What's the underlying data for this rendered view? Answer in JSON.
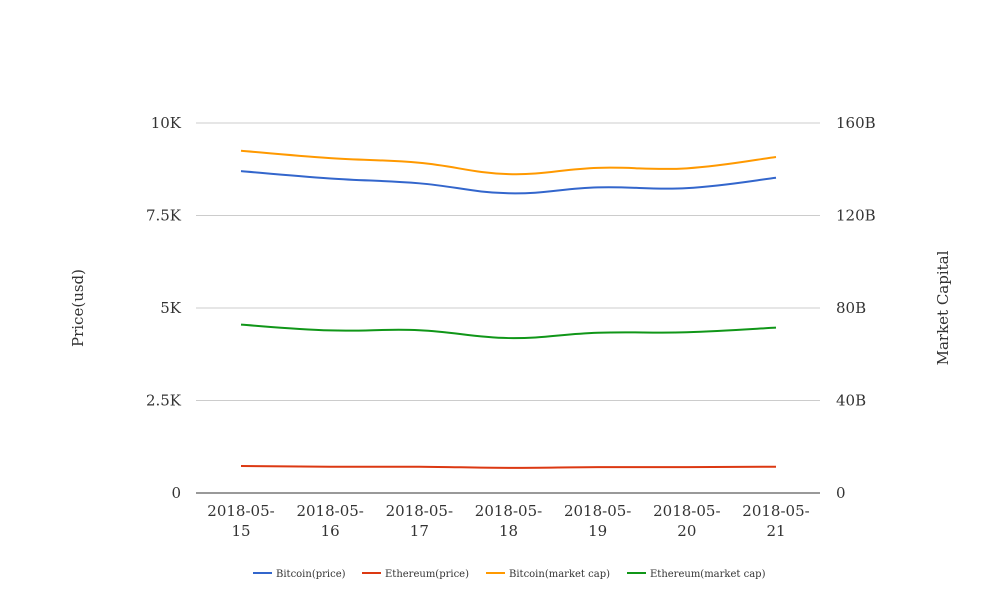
{
  "chart_data": {
    "type": "line",
    "x": [
      "2018-05-15",
      "2018-05-16",
      "2018-05-17",
      "2018-05-18",
      "2018-05-19",
      "2018-05-20",
      "2018-05-21"
    ],
    "x_tick_labels": [
      [
        "2018-05-",
        "15"
      ],
      [
        "2018-05-",
        "16"
      ],
      [
        "2018-05-",
        "17"
      ],
      [
        "2018-05-",
        "18"
      ],
      [
        "2018-05-",
        "19"
      ],
      [
        "2018-05-",
        "20"
      ],
      [
        "2018-05-",
        "21"
      ]
    ],
    "ylabel_left": "Price(usd)",
    "ylabel_right": "Market Capital",
    "ylim_left": [
      0,
      10000
    ],
    "ylim_right": [
      0,
      160000000000
    ],
    "yticks_left": [
      {
        "value": 0,
        "label": "0"
      },
      {
        "value": 2500,
        "label": "2.5K"
      },
      {
        "value": 5000,
        "label": "5K"
      },
      {
        "value": 7500,
        "label": "7.5K"
      },
      {
        "value": 10000,
        "label": "10K"
      }
    ],
    "yticks_right": [
      {
        "value": 0,
        "label": "0"
      },
      {
        "value": 40000000000,
        "label": "40B"
      },
      {
        "value": 80000000000,
        "label": "80B"
      },
      {
        "value": 120000000000,
        "label": "120B"
      },
      {
        "value": 160000000000,
        "label": "160B"
      }
    ],
    "grid": true,
    "legend_position": "bottom",
    "series": [
      {
        "name": "Bitcoin(price)",
        "axis": "left",
        "color": "#3366cc",
        "values": [
          8700,
          8500,
          8370,
          8100,
          8260,
          8240,
          8520
        ]
      },
      {
        "name": "Ethereum(price)",
        "axis": "left",
        "color": "#dc3912",
        "values": [
          730,
          710,
          710,
          680,
          700,
          700,
          710
        ]
      },
      {
        "name": "Bitcoin(market cap)",
        "axis": "right",
        "color": "#ff9900",
        "values": [
          148000000000,
          144800000000,
          142800000000,
          137900000000,
          140600000000,
          140400000000,
          145300000000
        ]
      },
      {
        "name": "Ethereum(market cap)",
        "axis": "right",
        "color": "#109618",
        "values": [
          72800000000,
          70300000000,
          70400000000,
          67000000000,
          69300000000,
          69500000000,
          71500000000
        ]
      }
    ]
  }
}
